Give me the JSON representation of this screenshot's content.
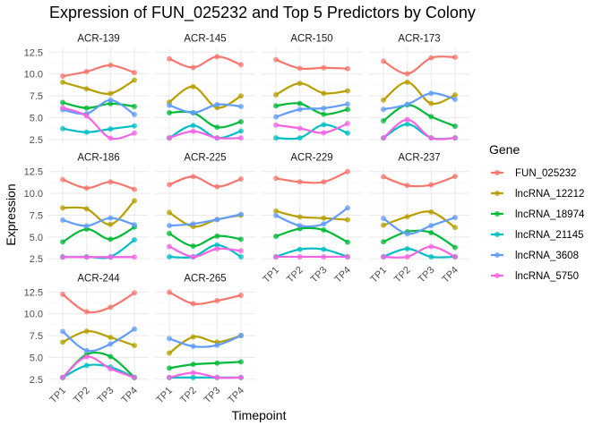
{
  "chart_data": {
    "type": "line",
    "title": "Expression of FUN_025232 and Top 5 Predictors by Colony",
    "xlabel": "Timepoint",
    "ylabel": "Expression",
    "categories": [
      "TP1",
      "TP2",
      "TP3",
      "TP4"
    ],
    "y_ticks": [
      "2.5",
      "5.0",
      "7.5",
      "10.0",
      "12.5"
    ],
    "ylim": [
      2.5,
      12.5
    ],
    "grid": true,
    "legend": {
      "title": "Gene",
      "placement": "right",
      "entries": [
        {
          "name": "FUN_025232",
          "color": "#F8766D"
        },
        {
          "name": "lncRNA_12212",
          "color": "#B79F00"
        },
        {
          "name": "lncRNA_18974",
          "color": "#00BA38"
        },
        {
          "name": "lncRNA_21145",
          "color": "#00BFC4"
        },
        {
          "name": "lncRNA_3608",
          "color": "#619CFF"
        },
        {
          "name": "lncRNA_5750",
          "color": "#F564E3"
        }
      ]
    },
    "facets": [
      {
        "name": "ACR-139",
        "series": [
          [
            9.75,
            10.27,
            11.0,
            10.16
          ],
          [
            9.06,
            8.3,
            7.76,
            9.3
          ],
          [
            6.73,
            6.1,
            6.6,
            6.28
          ],
          [
            3.74,
            3.33,
            3.7,
            4.05
          ],
          [
            5.9,
            5.45,
            7.0,
            5.35
          ],
          [
            6.14,
            5.18,
            2.64,
            3.22
          ]
        ]
      },
      {
        "name": "ACR-145",
        "series": [
          [
            11.74,
            10.75,
            11.98,
            11.06
          ],
          [
            6.76,
            8.55,
            6.14,
            7.48
          ],
          [
            5.56,
            5.56,
            3.9,
            4.53
          ],
          [
            2.67,
            4.1,
            2.67,
            3.46
          ],
          [
            6.42,
            5.56,
            6.49,
            6.28
          ],
          [
            2.67,
            3.43,
            2.67,
            2.67
          ]
        ]
      },
      {
        "name": "ACR-150",
        "series": [
          [
            11.64,
            10.64,
            10.71,
            10.61
          ],
          [
            7.62,
            8.93,
            7.79,
            8.07
          ],
          [
            6.35,
            6.62,
            5.39,
            5.94
          ],
          [
            2.67,
            2.67,
            4.18,
            3.22
          ],
          [
            5.08,
            5.94,
            6.07,
            6.55
          ],
          [
            4.15,
            3.77,
            3.26,
            4.32
          ]
        ]
      },
      {
        "name": "ACR-173",
        "series": [
          [
            11.47,
            10.03,
            11.85,
            11.92
          ],
          [
            7.0,
            9.06,
            6.62,
            7.59
          ],
          [
            4.63,
            6.45,
            5.11,
            4.01
          ],
          [
            2.67,
            4.25,
            2.67,
            2.67
          ],
          [
            5.94,
            6.52,
            7.79,
            7.1
          ],
          [
            2.67,
            4.77,
            2.67,
            2.67
          ]
        ]
      },
      {
        "name": "ACR-186",
        "series": [
          [
            11.58,
            10.6,
            11.31,
            10.46
          ],
          [
            8.33,
            8.23,
            6.44,
            9.15
          ],
          [
            4.43,
            5.9,
            4.74,
            6.13
          ],
          [
            2.73,
            2.73,
            2.73,
            4.67
          ],
          [
            6.94,
            6.27,
            7.18,
            6.4
          ],
          [
            2.7,
            2.7,
            2.7,
            2.7
          ]
        ]
      },
      {
        "name": "ACR-225",
        "series": [
          [
            11.0,
            11.92,
            10.77,
            11.65
          ],
          [
            7.8,
            6.2,
            7.0,
            7.5
          ],
          [
            5.4,
            3.96,
            5.1,
            4.74
          ],
          [
            2.73,
            2.73,
            4.08,
            2.73
          ],
          [
            6.3,
            6.5,
            7.0,
            7.6
          ],
          [
            3.9,
            2.73,
            3.65,
            3.4
          ]
        ]
      },
      {
        "name": "ACR-229",
        "series": [
          [
            11.72,
            11.31,
            11.31,
            12.5
          ],
          [
            7.97,
            7.3,
            7.16,
            6.97
          ],
          [
            5.07,
            5.95,
            5.8,
            4.4
          ],
          [
            2.73,
            3.58,
            3.58,
            2.73
          ],
          [
            7.47,
            6.3,
            6.5,
            8.33
          ],
          [
            2.73,
            2.73,
            2.73,
            2.73
          ]
        ]
      },
      {
        "name": "ACR-237",
        "series": [
          [
            11.9,
            10.9,
            10.98,
            11.95
          ],
          [
            6.35,
            7.33,
            7.87,
            6.08
          ],
          [
            4.45,
            5.6,
            5.5,
            3.8
          ],
          [
            2.73,
            3.65,
            2.73,
            2.73
          ],
          [
            7.13,
            5.37,
            6.3,
            7.23
          ],
          [
            2.73,
            2.73,
            3.9,
            2.73
          ]
        ]
      },
      {
        "name": "ACR-244",
        "series": [
          [
            12.23,
            10.24,
            10.75,
            12.4
          ],
          [
            6.75,
            8.0,
            7.3,
            6.37
          ],
          [
            2.7,
            5.34,
            5.1,
            2.7
          ],
          [
            2.7,
            4.08,
            3.9,
            2.7
          ],
          [
            7.98,
            5.79,
            6.54,
            8.25
          ],
          [
            2.7,
            5.07,
            3.7,
            2.7
          ]
        ]
      },
      {
        "name": "ACR-265",
        "series": [
          [
            12.47,
            11.16,
            11.5,
            12.12
          ],
          [
            5.5,
            7.35,
            6.75,
            7.5
          ],
          [
            3.77,
            4.21,
            4.35,
            4.49
          ],
          [
            2.7,
            2.7,
            2.7,
            2.7
          ],
          [
            7.16,
            6.27,
            6.4,
            7.5
          ],
          [
            2.7,
            3.25,
            2.7,
            2.7
          ]
        ]
      }
    ]
  }
}
